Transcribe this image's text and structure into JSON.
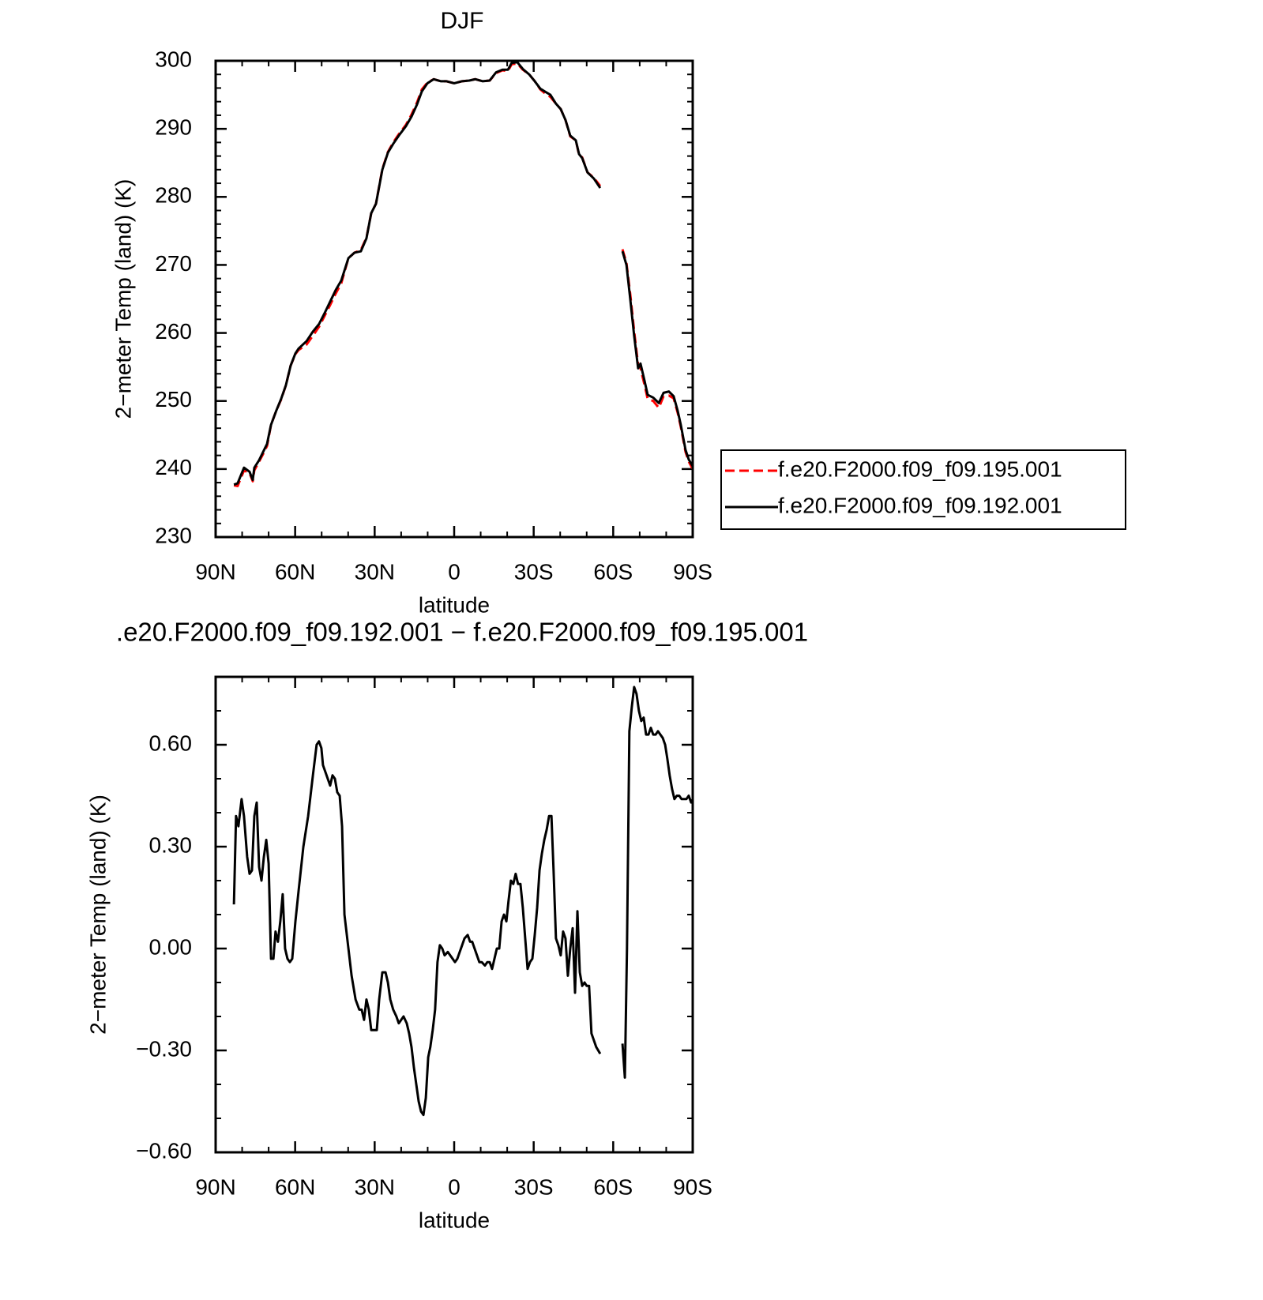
{
  "chart_data": [
    {
      "type": "line",
      "title": "DJF",
      "x_label": "latitude",
      "y_label": "2−meter Temp (land) (K)",
      "x": [
        83.1,
        81.7,
        79.3,
        77.2,
        76.0,
        75.4,
        73.6,
        72.1,
        70.6,
        69.1,
        67.1,
        65.3,
        63.5,
        61.7,
        59.9,
        58.7,
        55.7,
        53.3,
        51.0,
        48.9,
        46.8,
        44.7,
        42.6,
        39.9,
        37.6,
        35.2,
        33.1,
        31.3,
        29.5,
        27.1,
        25.0,
        23.0,
        20.9,
        18.2,
        16.1,
        14.0,
        12.2,
        10.1,
        7.7,
        5.1,
        3.0,
        0,
        -3.0,
        -5.7,
        -8.0,
        -10.7,
        -13.4,
        -15.8,
        -18.2,
        -20.3,
        -21.7,
        -23.8,
        -25.9,
        -28.3,
        -30.4,
        -32.5,
        -34.6,
        -36.3,
        -38.4,
        -40.2,
        -42.0,
        -43.8,
        -45.9,
        -47.1,
        -48.3,
        -50.3,
        -52.7,
        -55.1,
        -60,
        -63.5,
        -65.0,
        -66.4,
        -67.9,
        -69.4,
        -70.3,
        -71.8,
        -73.0,
        -75.1,
        -77.2,
        -79.0,
        -81.0,
        -82.8,
        -84.3,
        -85.5,
        -87.3,
        -88.5,
        -90.0
      ],
      "series": [
        {
          "name": "f.e20.F2000.f09_f09.195.001",
          "color": "#ff0000",
          "linestyle": "dashed",
          "values": [
            237.6,
            237.5,
            239.8,
            239.4,
            238.2,
            239.8,
            241.1,
            242.2,
            243.4,
            246.5,
            248.6,
            250.2,
            252.3,
            255.2,
            256.9,
            257.5,
            258.3,
            259.6,
            260.9,
            262.5,
            264.1,
            265.8,
            267.3,
            271.0,
            271.8,
            272.2,
            274.0,
            277.6,
            279.0,
            284.1,
            286.6,
            288.0,
            289.2,
            290.6,
            292.1,
            293.9,
            295.8,
            296.8,
            297.3,
            297.0,
            297.0,
            296.7,
            297.0,
            297.1,
            297.3,
            297.0,
            297.1,
            298.2,
            298.6,
            298.5,
            299.5,
            299.6,
            298.7,
            298.0,
            297.0,
            295.8,
            295.1,
            294.7,
            293.7,
            292.9,
            291.3,
            288.9,
            288.3,
            286.2,
            285.8,
            283.6,
            282.8,
            281.6,
            null,
            272.3,
            270.3,
            265.8,
            260.3,
            255.3,
            254.8,
            252.4,
            250.3,
            250.0,
            249.0,
            250.7,
            250.8,
            250.4,
            248.3,
            246.2,
            242.5,
            241.1,
            240.0
          ]
        },
        {
          "name": "f.e20.F2000.f09_f09.192.001",
          "color": "#000000",
          "linestyle": "solid",
          "values": [
            237.7,
            237.9,
            240.2,
            239.6,
            238.4,
            240.2,
            241.3,
            242.5,
            243.7,
            246.5,
            248.6,
            250.3,
            252.3,
            255.2,
            257.0,
            257.7,
            258.8,
            260.2,
            261.3,
            262.9,
            264.6,
            266.3,
            267.7,
            271.0,
            271.8,
            272.0,
            273.9,
            277.6,
            279.0,
            284.0,
            286.5,
            287.8,
            289.0,
            290.4,
            291.8,
            293.6,
            295.5,
            296.7,
            297.3,
            297.0,
            297.0,
            296.7,
            297.0,
            297.1,
            297.3,
            297.0,
            297.1,
            298.3,
            298.7,
            298.7,
            299.7,
            299.8,
            298.8,
            298.0,
            297.0,
            295.9,
            295.4,
            295.0,
            293.7,
            292.9,
            291.3,
            289.0,
            288.3,
            286.3,
            285.7,
            283.6,
            282.7,
            281.3,
            null,
            272.0,
            270.0,
            265.1,
            259.6,
            254.8,
            255.5,
            253.0,
            250.9,
            250.5,
            249.7,
            251.2,
            251.4,
            250.7,
            248.6,
            246.5,
            242.8,
            241.4,
            240.4
          ]
        }
      ],
      "xlim": [
        90,
        -90
      ],
      "xticks": [
        {
          "value": 90,
          "label": "90N"
        },
        {
          "value": 60,
          "label": "60N"
        },
        {
          "value": 30,
          "label": "30N"
        },
        0,
        {
          "value": -30,
          "label": "30S"
        },
        {
          "value": -60,
          "label": "60S"
        },
        {
          "value": -90,
          "label": "90S"
        }
      ],
      "xminorticks": [
        80,
        70,
        50,
        40,
        20,
        10,
        -10,
        -20,
        -40,
        -50,
        -70,
        -80
      ],
      "ylim": [
        230,
        300
      ],
      "yticks": [
        230,
        240,
        250,
        260,
        270,
        280,
        290,
        300
      ],
      "yminorticks": [
        232,
        234,
        236,
        238,
        242,
        244,
        246,
        248,
        252,
        254,
        256,
        258,
        262,
        264,
        266,
        268,
        272,
        274,
        276,
        278,
        282,
        284,
        286,
        288,
        292,
        294,
        296,
        298
      ],
      "legend": "right"
    },
    {
      "type": "line",
      "title": ".e20.F2000.f09_f09.192.001 − f.e20.F2000.f09_f09.195.001",
      "x_label": "latitude",
      "y_label": "2−meter Temp (land) (K)",
      "x": [
        83.1,
        82.3,
        81.4,
        80.2,
        79.3,
        78.1,
        77.2,
        76.3,
        75.4,
        74.5,
        73.6,
        72.7,
        71.8,
        70.9,
        70.0,
        69.1,
        68.2,
        67.4,
        66.5,
        65.6,
        64.7,
        63.8,
        62.9,
        62.0,
        61.1,
        59.9,
        58.7,
        56.9,
        55.1,
        53.3,
        51.9,
        51.0,
        50.1,
        49.5,
        48.6,
        46.8,
        45.9,
        45.0,
        44.1,
        43.2,
        42.3,
        41.4,
        39.9,
        38.7,
        37.2,
        35.8,
        34.9,
        34.0,
        33.1,
        32.2,
        31.3,
        30.1,
        29.2,
        28.3,
        27.1,
        25.9,
        25.0,
        24.1,
        23.0,
        21.8,
        20.9,
        20.0,
        19.1,
        17.9,
        17.0,
        16.1,
        15.2,
        14.3,
        13.4,
        12.5,
        11.6,
        10.7,
        9.8,
        9.0,
        8.1,
        7.2,
        6.3,
        5.4,
        4.5,
        3.6,
        2.4,
        1.5,
        0.6,
        -0.3,
        -1.2,
        -2.1,
        -3.0,
        -3.9,
        -5.1,
        -6.0,
        -6.8,
        -7.7,
        -8.6,
        -9.5,
        -10.4,
        -11.6,
        -12.5,
        -13.4,
        -14.3,
        -15.2,
        -16.1,
        -17.0,
        -17.9,
        -18.8,
        -19.7,
        -20.5,
        -21.4,
        -22.3,
        -23.2,
        -24.1,
        -25.0,
        -25.9,
        -26.8,
        -27.7,
        -28.6,
        -29.5,
        -30.4,
        -31.3,
        -32.2,
        -33.1,
        -34.0,
        -34.9,
        -35.8,
        -36.7,
        -37.5,
        -38.4,
        -39.3,
        -40.2,
        -41.1,
        -42.0,
        -42.9,
        -43.8,
        -44.7,
        -45.6,
        -46.5,
        -47.4,
        -48.3,
        -49.2,
        -50.0,
        -50.9,
        -51.8,
        -52.7,
        -53.6,
        -55.1,
        -60,
        -63.5,
        -64.4,
        -65.2,
        -66.1,
        -67.0,
        -67.9,
        -68.8,
        -69.7,
        -70.6,
        -71.5,
        -72.4,
        -73.3,
        -74.2,
        -75.1,
        -76.0,
        -76.9,
        -77.8,
        -78.7,
        -79.6,
        -80.4,
        -81.3,
        -82.2,
        -83.1,
        -84.0,
        -84.9,
        -85.8,
        -86.7,
        -87.6,
        -88.5,
        -89.4,
        -90.0
      ],
      "series": [
        {
          "color": "#000000",
          "linestyle": "solid",
          "values": [
            0.13,
            0.39,
            0.36,
            0.44,
            0.39,
            0.27,
            0.22,
            0.23,
            0.39,
            0.43,
            0.24,
            0.2,
            0.27,
            0.32,
            0.25,
            -0.03,
            -0.03,
            0.05,
            0.02,
            0.08,
            0.16,
            0.0,
            -0.03,
            -0.04,
            -0.03,
            0.08,
            0.17,
            0.3,
            0.39,
            0.51,
            0.6,
            0.61,
            0.59,
            0.54,
            0.52,
            0.48,
            0.51,
            0.5,
            0.46,
            0.45,
            0.36,
            0.1,
            0.0,
            -0.08,
            -0.15,
            -0.18,
            -0.18,
            -0.21,
            -0.15,
            -0.18,
            -0.24,
            -0.24,
            -0.24,
            -0.15,
            -0.07,
            -0.07,
            -0.1,
            -0.15,
            -0.18,
            -0.2,
            -0.22,
            -0.21,
            -0.2,
            -0.22,
            -0.25,
            -0.29,
            -0.35,
            -0.4,
            -0.45,
            -0.48,
            -0.49,
            -0.44,
            -0.32,
            -0.29,
            -0.24,
            -0.18,
            -0.04,
            0.01,
            0.0,
            -0.02,
            -0.01,
            -0.02,
            -0.03,
            -0.04,
            -0.03,
            -0.01,
            0.01,
            0.03,
            0.04,
            0.02,
            0.02,
            0.0,
            -0.02,
            -0.04,
            -0.04,
            -0.05,
            -0.04,
            -0.04,
            -0.06,
            -0.03,
            0.0,
            0.0,
            0.08,
            0.1,
            0.08,
            0.14,
            0.2,
            0.19,
            0.22,
            0.19,
            0.19,
            0.12,
            0.03,
            -0.06,
            -0.04,
            -0.03,
            0.04,
            0.12,
            0.23,
            0.28,
            0.32,
            0.35,
            0.39,
            0.39,
            0.23,
            0.03,
            0.01,
            -0.02,
            0.05,
            0.03,
            -0.08,
            0.0,
            0.06,
            -0.13,
            0.11,
            -0.07,
            -0.11,
            -0.1,
            -0.11,
            -0.11,
            -0.25,
            -0.27,
            -0.29,
            -0.31,
            null,
            -0.28,
            -0.38,
            0.0,
            0.64,
            0.71,
            0.77,
            0.75,
            0.7,
            0.67,
            0.68,
            0.63,
            0.63,
            0.65,
            0.63,
            0.63,
            0.64,
            0.63,
            0.62,
            0.6,
            0.56,
            0.51,
            0.47,
            0.44,
            0.45,
            0.45,
            0.44,
            0.44,
            0.44,
            0.45,
            0.43,
            0.44
          ]
        }
      ],
      "xlim": [
        90,
        -90
      ],
      "xticks": [
        {
          "value": 90,
          "label": "90N"
        },
        {
          "value": 60,
          "label": "60N"
        },
        {
          "value": 30,
          "label": "30N"
        },
        0,
        {
          "value": -30,
          "label": "30S"
        },
        {
          "value": -60,
          "label": "60S"
        },
        {
          "value": -90,
          "label": "90S"
        }
      ],
      "xminorticks": [
        80,
        70,
        50,
        40,
        20,
        10,
        -10,
        -20,
        -40,
        -50,
        -70,
        -80
      ],
      "ylim": [
        -0.6,
        0.8
      ],
      "yticks": [
        {
          "value": -0.6,
          "label": "−0.60"
        },
        {
          "value": -0.3,
          "label": "−0.30"
        },
        {
          "value": 0,
          "label": "0.00"
        },
        {
          "value": 0.3,
          "label": "0.30"
        },
        {
          "value": 0.6,
          "label": "0.60"
        }
      ],
      "yminorticks": [
        -0.5,
        -0.4,
        -0.2,
        -0.1,
        0.1,
        0.2,
        0.4,
        0.5,
        0.7
      ]
    }
  ]
}
